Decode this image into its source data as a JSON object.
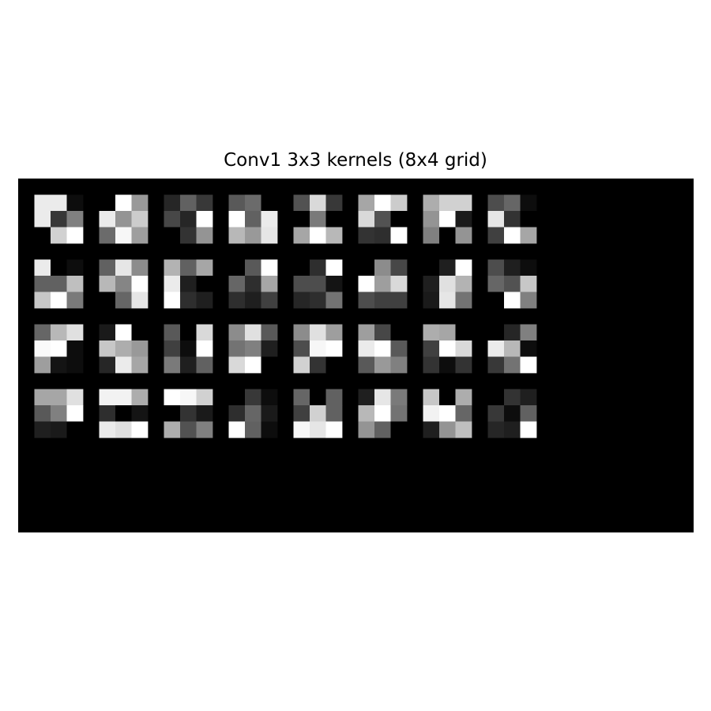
{
  "chart_data": {
    "type": "heatmap",
    "title": "Conv1 3x3 kernels (8x4 grid)",
    "colormap": "gray",
    "background": "#000000",
    "grid_cols": 8,
    "grid_rows": 4,
    "kernel_size": 3,
    "axes": "off",
    "kernels": [
      [
        [
          0.92,
          0.92,
          0.05
        ],
        [
          0.92,
          0.22,
          0.5
        ],
        [
          0.0,
          0.82,
          1.0
        ]
      ],
      [
        [
          0.0,
          1.0,
          0.6
        ],
        [
          0.92,
          0.58,
          0.8
        ],
        [
          0.42,
          0.97,
          0.62
        ]
      ],
      [
        [
          0.15,
          0.38,
          0.22
        ],
        [
          0.28,
          0.15,
          1.0
        ],
        [
          0.0,
          0.2,
          0.58
        ]
      ],
      [
        [
          0.35,
          0.42,
          0.0
        ],
        [
          1.0,
          0.38,
          0.92
        ],
        [
          0.72,
          0.6,
          0.9
        ]
      ],
      [
        [
          0.32,
          0.85,
          0.22
        ],
        [
          0.0,
          0.48,
          0.0
        ],
        [
          0.65,
          1.0,
          0.72
        ]
      ],
      [
        [
          0.65,
          1.0,
          0.8
        ],
        [
          0.85,
          0.32,
          0.0
        ],
        [
          0.2,
          0.18,
          1.0
        ]
      ],
      [
        [
          0.68,
          0.82,
          0.82
        ],
        [
          0.58,
          1.0,
          0.1
        ],
        [
          0.5,
          0.0,
          0.58
        ]
      ],
      [
        [
          0.3,
          0.4,
          0.05
        ],
        [
          0.9,
          0.2,
          0.0
        ],
        [
          0.25,
          1.0,
          0.65
        ]
      ],
      [
        [
          0.92,
          0.0,
          0.05
        ],
        [
          0.38,
          0.38,
          0.75
        ],
        [
          0.78,
          1.0,
          0.48
        ]
      ],
      [
        [
          0.38,
          0.9,
          0.55
        ],
        [
          0.72,
          0.52,
          1.0
        ],
        [
          0.0,
          0.4,
          0.9
        ]
      ],
      [
        [
          0.7,
          0.38,
          0.65
        ],
        [
          0.92,
          0.12,
          0.0
        ],
        [
          1.0,
          0.18,
          0.12
        ]
      ],
      [
        [
          0.0,
          0.35,
          1.0
        ],
        [
          0.4,
          0.18,
          0.65
        ],
        [
          0.18,
          0.12,
          0.25
        ]
      ],
      [
        [
          0.0,
          0.18,
          1.0
        ],
        [
          0.3,
          0.3,
          0.08
        ],
        [
          0.15,
          0.18,
          0.45
        ]
      ],
      [
        [
          0.0,
          0.55,
          0.28
        ],
        [
          1.0,
          0.62,
          0.85
        ],
        [
          0.3,
          0.25,
          0.25
        ]
      ],
      [
        [
          0.0,
          0.12,
          1.0
        ],
        [
          0.12,
          0.88,
          0.7
        ],
        [
          0.1,
          0.9,
          0.45
        ]
      ],
      [
        [
          0.3,
          0.12,
          0.05
        ],
        [
          0.4,
          0.32,
          0.78
        ],
        [
          0.0,
          1.0,
          0.5
        ]
      ],
      [
        [
          0.4,
          0.72,
          0.88
        ],
        [
          0.98,
          1.0,
          0.05
        ],
        [
          0.62,
          0.08,
          0.05
        ]
      ],
      [
        [
          0.1,
          1.0,
          0.0
        ],
        [
          0.78,
          0.68,
          0.6
        ],
        [
          0.15,
          0.92,
          0.65
        ]
      ],
      [
        [
          0.35,
          0.0,
          0.85
        ],
        [
          0.25,
          0.05,
          1.0
        ],
        [
          0.48,
          0.12,
          0.38
        ]
      ],
      [
        [
          0.55,
          0.88,
          0.35
        ],
        [
          0.45,
          0.5,
          0.12
        ],
        [
          0.85,
          1.0,
          0.0
        ]
      ],
      [
        [
          0.55,
          0.88,
          0.62
        ],
        [
          0.3,
          0.97,
          1.0
        ],
        [
          0.82,
          0.2,
          0.0
        ]
      ],
      [
        [
          0.62,
          0.28,
          0.0
        ],
        [
          0.92,
          1.0,
          0.35
        ],
        [
          0.35,
          0.6,
          0.5
        ]
      ],
      [
        [
          0.68,
          0.65,
          0.0
        ],
        [
          0.25,
          1.0,
          0.85
        ],
        [
          0.2,
          0.05,
          0.2
        ]
      ],
      [
        [
          0.0,
          0.15,
          0.5
        ],
        [
          0.92,
          0.72,
          0.05
        ],
        [
          0.22,
          0.45,
          1.0
        ]
      ],
      [
        [
          0.65,
          0.65,
          0.88
        ],
        [
          0.35,
          0.5,
          1.0
        ],
        [
          0.12,
          0.1,
          0.0
        ]
      ],
      [
        [
          0.95,
          0.95,
          0.68
        ],
        [
          0.18,
          0.0,
          0.08
        ],
        [
          0.92,
          0.88,
          1.0
        ]
      ],
      [
        [
          1.0,
          0.97,
          0.82
        ],
        [
          0.0,
          0.2,
          0.1
        ],
        [
          0.68,
          0.32,
          0.5
        ]
      ],
      [
        [
          0.0,
          0.22,
          0.05
        ],
        [
          0.18,
          0.4,
          0.1
        ],
        [
          1.0,
          0.38,
          0.05
        ]
      ],
      [
        [
          0.4,
          0.0,
          0.38
        ],
        [
          0.25,
          0.82,
          0.38
        ],
        [
          0.97,
          0.9,
          1.0
        ]
      ],
      [
        [
          0.12,
          0.9,
          0.48
        ],
        [
          0.72,
          1.0,
          0.45
        ],
        [
          0.58,
          0.38,
          0.0
        ]
      ],
      [
        [
          0.78,
          0.0,
          0.68
        ],
        [
          0.95,
          1.0,
          0.4
        ],
        [
          0.12,
          0.58,
          0.75
        ]
      ],
      [
        [
          0.0,
          0.2,
          0.12
        ],
        [
          0.22,
          0.05,
          0.38
        ],
        [
          0.15,
          0.12,
          1.0
        ]
      ]
    ]
  }
}
